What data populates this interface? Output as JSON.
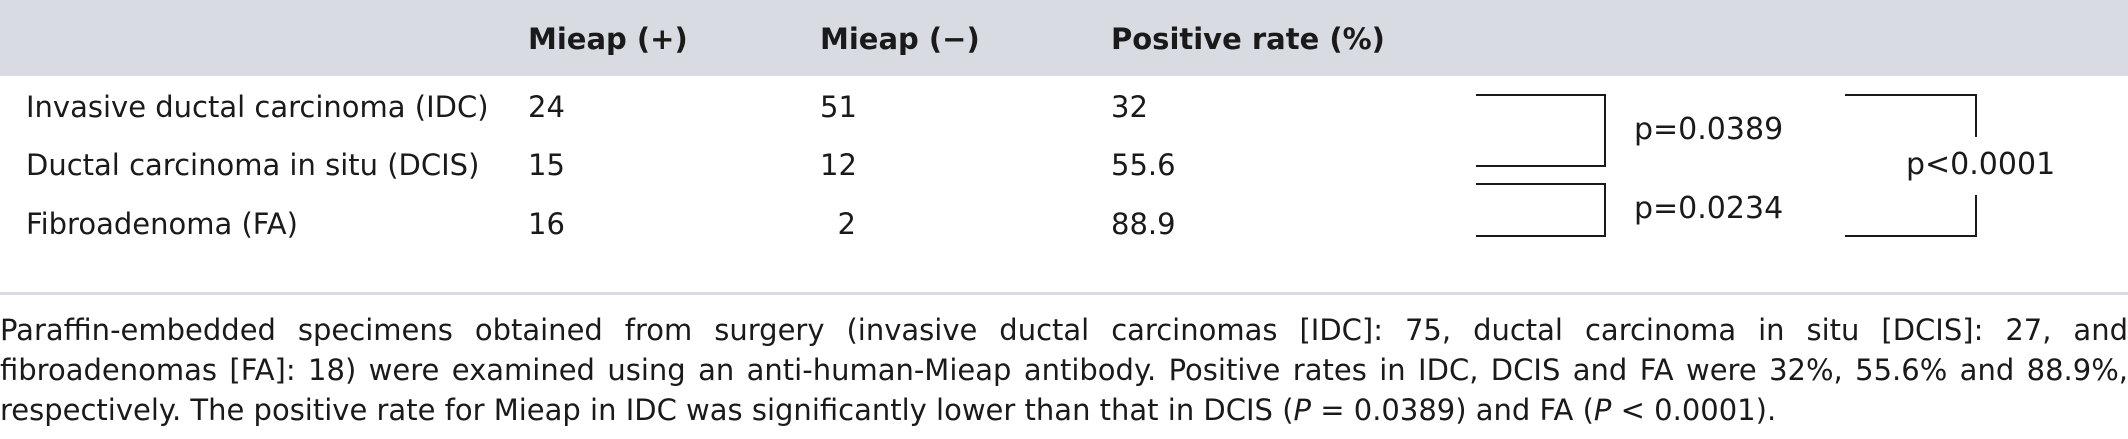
{
  "table": {
    "headers": [
      "",
      "Mieap (+)",
      "Mieap (−)",
      "Positive rate (%)"
    ],
    "rows": [
      {
        "label": "Invasive ductal carcinoma (IDC)",
        "pos": "24",
        "neg": "51",
        "rate": "32"
      },
      {
        "label": "Ductal carcinoma in situ (DCIS)",
        "pos": "15",
        "neg": "12",
        "rate": "55.6"
      },
      {
        "label": "Fibroadenoma (FA)",
        "pos": "16",
        "neg": "2",
        "rate": "88.9"
      }
    ],
    "comparisons": {
      "idc_dcis": "p=0.0389",
      "dcis_fa": "p=0.0234",
      "idc_fa": "p<0.0001"
    }
  },
  "footnote": {
    "part1": "Paraffin-embedded specimens obtained from surgery (invasive ductal carcinomas [IDC]: 75, ductal carcinoma in situ [DCIS]: 27, and fibroadenomas [FA]: 18) were examined using an anti-human-Mieap antibody. Positive rates in IDC, DCIS and FA were 32%, 55.6% and 88.9%, respectively. The positive rate for Mieap in IDC was significantly lower than that in DCIS (",
    "p_symbol_1": "P",
    "part2": " = 0.0389) and FA (",
    "p_symbol_2": "P",
    "part3": " < 0.0001)."
  }
}
